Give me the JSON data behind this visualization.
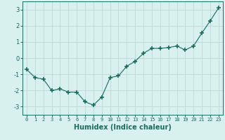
{
  "x": [
    0,
    1,
    2,
    3,
    4,
    5,
    6,
    7,
    8,
    9,
    10,
    11,
    12,
    13,
    14,
    15,
    16,
    17,
    18,
    19,
    20,
    21,
    22,
    23
  ],
  "y": [
    -0.7,
    -1.2,
    -1.3,
    -2.0,
    -1.9,
    -2.1,
    -2.1,
    -2.7,
    -2.9,
    -2.4,
    -1.2,
    -1.1,
    -0.5,
    -0.2,
    0.3,
    0.6,
    0.6,
    0.65,
    0.75,
    0.5,
    0.75,
    1.55,
    2.3,
    3.1
  ],
  "title": "",
  "xlabel": "Humidex (Indice chaleur)",
  "ylabel": "",
  "xlim": [
    -0.5,
    23.5
  ],
  "ylim": [
    -3.5,
    3.5
  ],
  "yticks": [
    -3,
    -2,
    -1,
    0,
    1,
    2,
    3
  ],
  "xticks": [
    0,
    1,
    2,
    3,
    4,
    5,
    6,
    7,
    8,
    9,
    10,
    11,
    12,
    13,
    14,
    15,
    16,
    17,
    18,
    19,
    20,
    21,
    22,
    23
  ],
  "line_color": "#1a6b5a",
  "marker": "+",
  "marker_size": 4,
  "bg_color": "#d8f0ee",
  "grid_color": "#c0dcd8",
  "axis_color": "#1a6b5a",
  "label_color": "#1a6b5a",
  "font_size_xlabel": 7,
  "font_size_ytick": 6,
  "font_size_xtick": 5
}
